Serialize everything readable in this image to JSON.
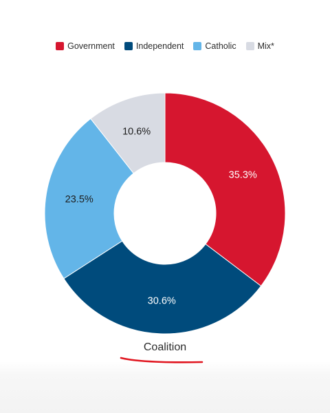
{
  "chart_data": {
    "type": "pie",
    "donut": true,
    "title": "Coalition",
    "categories": [
      "Government",
      "Independent",
      "Catholic",
      "Mix*"
    ],
    "values": [
      35.3,
      30.6,
      23.5,
      10.6
    ],
    "labels": [
      "35.3%",
      "30.6%",
      "23.5%",
      "10.6%"
    ],
    "colors": [
      "#d6162f",
      "#004b7c",
      "#63b5e8",
      "#d8dbe3"
    ],
    "label_colors": [
      "#ffffff",
      "#ffffff",
      "#1d1d1d",
      "#1d1d1d"
    ],
    "legend": "top-center"
  },
  "annotation": {
    "underline_color": "#e0141e"
  }
}
